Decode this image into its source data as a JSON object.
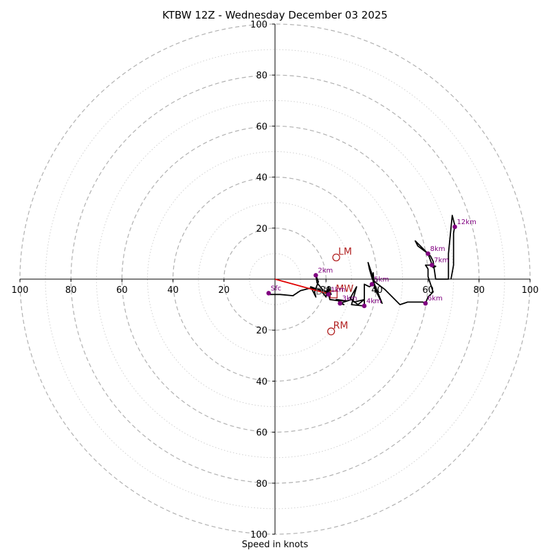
{
  "chart_data": {
    "type": "hodograph",
    "title": "KTBW 12Z - Wednesday December 03 2025",
    "xlabel": "Speed in knots",
    "range": [
      -100,
      100
    ],
    "ring_major_step": 20,
    "ring_minor_step": 10,
    "x_ticks": [
      {
        "value": -100,
        "label": "100"
      },
      {
        "value": -80,
        "label": "80"
      },
      {
        "value": -60,
        "label": "60"
      },
      {
        "value": -40,
        "label": "40"
      },
      {
        "value": -20,
        "label": "20"
      },
      {
        "value": 20,
        "label": "20"
      },
      {
        "value": 40,
        "label": "40"
      },
      {
        "value": 60,
        "label": "60"
      },
      {
        "value": 80,
        "label": "80"
      },
      {
        "value": 100,
        "label": "100"
      }
    ],
    "y_ticks": [
      {
        "value": 100,
        "label": "100"
      },
      {
        "value": 80,
        "label": "80"
      },
      {
        "value": 60,
        "label": "60"
      },
      {
        "value": 40,
        "label": "40"
      },
      {
        "value": 20,
        "label": "20"
      },
      {
        "value": -20,
        "label": "20"
      },
      {
        "value": -40,
        "label": "40"
      },
      {
        "value": -60,
        "label": "60"
      },
      {
        "value": -80,
        "label": "80"
      },
      {
        "value": -100,
        "label": "100"
      }
    ],
    "hodograph_uv": [
      [
        -2.5,
        -6
      ],
      [
        2,
        -6
      ],
      [
        7,
        -6.5
      ],
      [
        10,
        -4.5
      ],
      [
        14,
        -3.5
      ],
      [
        17,
        -4
      ],
      [
        21,
        -5
      ],
      [
        21,
        -3
      ],
      [
        22,
        -6
      ],
      [
        19,
        -4.5
      ],
      [
        16.5,
        -1.5
      ],
      [
        16,
        1.5
      ],
      [
        17,
        -1
      ],
      [
        15.5,
        -5
      ],
      [
        16,
        -7
      ],
      [
        14,
        -3
      ],
      [
        18,
        -4.5
      ],
      [
        20,
        -7
      ],
      [
        20.5,
        -3.5
      ],
      [
        21.5,
        -8
      ],
      [
        25,
        -8.5
      ],
      [
        28,
        -8.5
      ],
      [
        24,
        -8
      ],
      [
        27,
        -10
      ],
      [
        25.5,
        -9.5
      ],
      [
        30,
        -8
      ],
      [
        32.5,
        -10
      ],
      [
        35,
        -8
      ],
      [
        31,
        -9
      ],
      [
        29.5,
        -7.5
      ],
      [
        32,
        -3
      ],
      [
        30,
        -10
      ],
      [
        35,
        -10.5
      ],
      [
        35,
        -6
      ],
      [
        35,
        -2
      ],
      [
        37,
        -3
      ],
      [
        38.5,
        -2
      ],
      [
        38.5,
        2.5
      ],
      [
        39,
        -3.5
      ],
      [
        42,
        -9.5
      ],
      [
        38,
        0.5
      ],
      [
        37,
        4
      ],
      [
        36.5,
        6.5
      ],
      [
        39,
        -1
      ],
      [
        43,
        -4
      ],
      [
        49,
        -10
      ],
      [
        52,
        -9
      ],
      [
        55,
        -9
      ],
      [
        58,
        -9
      ],
      [
        59,
        -9.5
      ],
      [
        60,
        -7
      ],
      [
        62,
        -5
      ],
      [
        61,
        -2
      ],
      [
        60,
        1
      ],
      [
        60,
        4
      ],
      [
        59,
        5.5
      ],
      [
        61.5,
        5.5
      ],
      [
        63,
        5
      ],
      [
        62,
        4.5
      ],
      [
        60,
        10
      ],
      [
        56,
        13
      ],
      [
        55,
        15
      ],
      [
        58,
        12
      ],
      [
        61,
        9
      ],
      [
        62,
        7
      ],
      [
        63,
        0
      ],
      [
        68,
        0
      ],
      [
        68,
        10
      ],
      [
        69.5,
        25
      ],
      [
        70.5,
        21
      ],
      [
        70,
        18
      ],
      [
        70,
        5.5
      ],
      [
        69,
        0
      ]
    ],
    "height_markers": [
      {
        "label": "Sfc",
        "u": -2.5,
        "v": -5.5
      },
      {
        "label": "1km",
        "u": 21,
        "v": -6
      },
      {
        "label": "2km",
        "u": 16,
        "v": 1.5
      },
      {
        "label": "3km",
        "u": 25.5,
        "v": -9.5
      },
      {
        "label": "4km",
        "u": 35,
        "v": -10.5
      },
      {
        "label": "5km",
        "u": 38,
        "v": -2
      },
      {
        "label": "6km",
        "u": 59,
        "v": -9.5
      },
      {
        "label": "7km",
        "u": 61.5,
        "v": 5.5
      },
      {
        "label": "8km",
        "u": 60,
        "v": 10
      },
      {
        "label": "12km",
        "u": 70.5,
        "v": 20.5
      }
    ],
    "storm_motion": [
      {
        "label": "LM",
        "u": 24,
        "v": 8.5,
        "marker": "circle"
      },
      {
        "label": "RM",
        "u": 22,
        "v": -20.5,
        "marker": "circle"
      },
      {
        "label": "MW",
        "u": 23,
        "v": -6,
        "marker": "square"
      }
    ],
    "red_vector": {
      "from": [
        0,
        0
      ],
      "to": [
        20,
        -5.5
      ]
    },
    "extra_labels": [
      {
        "label": "DC",
        "u": 17,
        "v": -4.5
      }
    ],
    "colors": {
      "hodograph": "#000000",
      "markers": "#800080",
      "motion": "#b22222",
      "vector": "#e00000",
      "rings": "#b0b0b0"
    }
  }
}
